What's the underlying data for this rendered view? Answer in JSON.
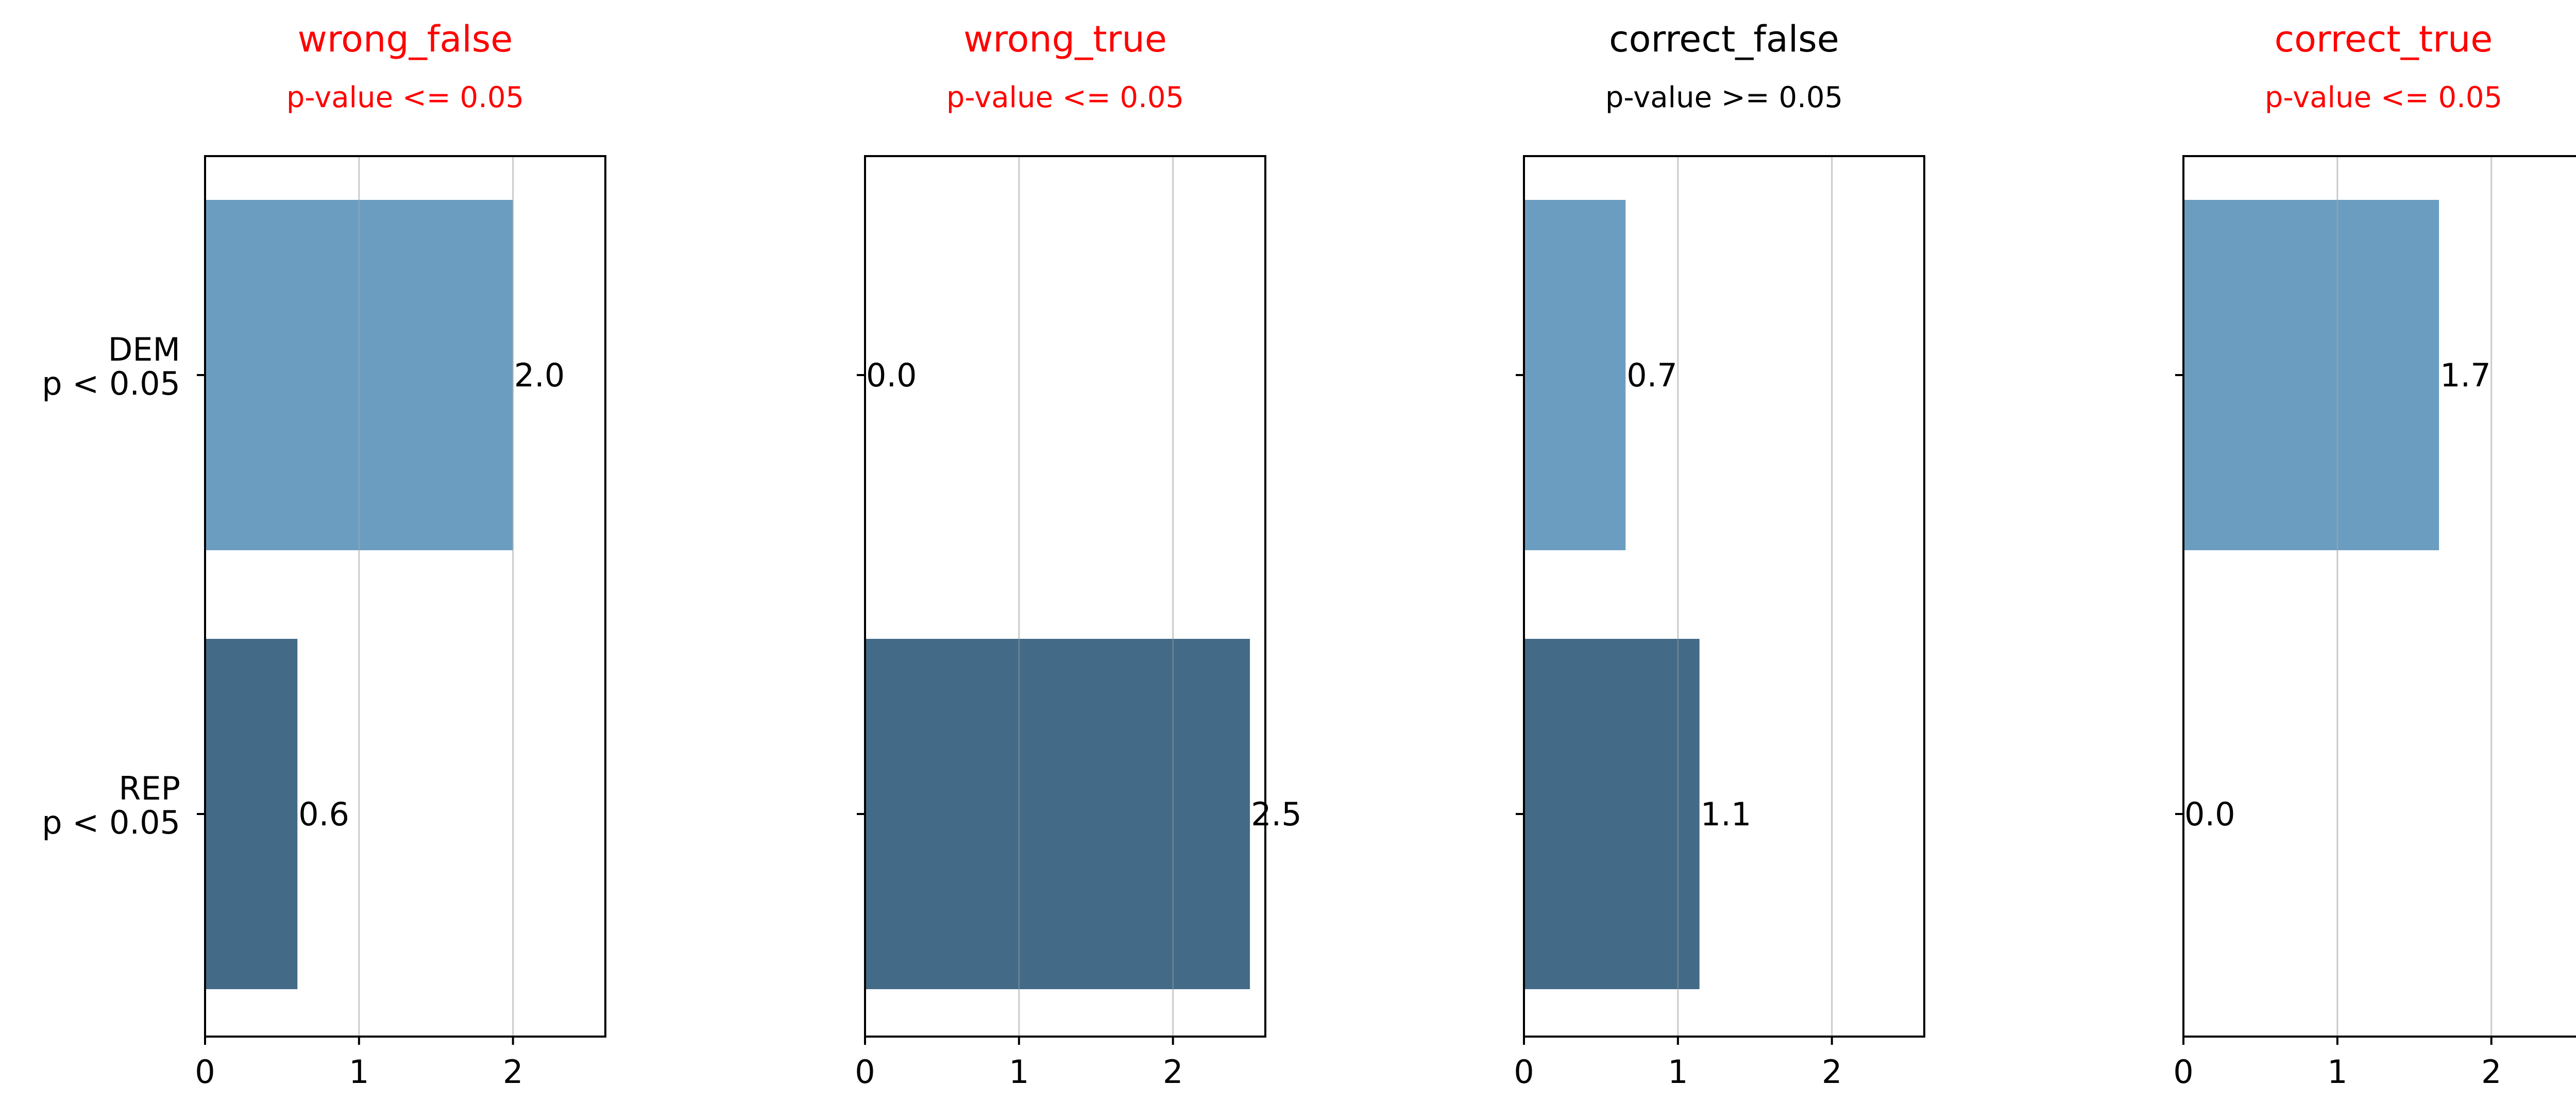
{
  "chart_data": [
    {
      "type": "bar",
      "orientation": "horizontal",
      "title": "wrong_false",
      "subtitle": "p-value <= 0.05",
      "title_color": "#ff0000",
      "categories": [
        "DEM\np < 0.05",
        "REP\np < 0.05"
      ],
      "values": [
        2.0,
        0.6
      ],
      "value_labels": [
        "2.0",
        "0.6"
      ],
      "bar_colors": [
        "#6b9dc0",
        "#436a86"
      ],
      "xlim": [
        0,
        2.6
      ],
      "xticks": [
        "0",
        "1",
        "2"
      ],
      "grid": "x"
    },
    {
      "type": "bar",
      "orientation": "horizontal",
      "title": "wrong_true",
      "subtitle": "p-value <= 0.05",
      "title_color": "#ff0000",
      "categories": [
        "DEM\np < 0.05",
        "REP\np < 0.05"
      ],
      "values": [
        0.0,
        2.5
      ],
      "value_labels": [
        "0.0",
        "2.5"
      ],
      "bar_colors": [
        "#6b9dc0",
        "#436a86"
      ],
      "xlim": [
        0,
        2.6
      ],
      "xticks": [
        "0",
        "1",
        "2"
      ],
      "grid": "x"
    },
    {
      "type": "bar",
      "orientation": "horizontal",
      "title": "correct_false",
      "subtitle": "p-value >= 0.05",
      "title_color": "#000000",
      "categories": [
        "DEM\np < 0.05",
        "REP\np < 0.05"
      ],
      "values": [
        0.66,
        1.14
      ],
      "value_labels": [
        "0.7",
        "1.1"
      ],
      "bar_colors": [
        "#6b9dc0",
        "#436a86"
      ],
      "xlim": [
        0,
        2.6
      ],
      "xticks": [
        "0",
        "1",
        "2"
      ],
      "grid": "x"
    },
    {
      "type": "bar",
      "orientation": "horizontal",
      "title": "correct_true",
      "subtitle": "p-value <= 0.05",
      "title_color": "#ff0000",
      "categories": [
        "DEM\np < 0.05",
        "REP\np < 0.05"
      ],
      "values": [
        1.66,
        0.0
      ],
      "value_labels": [
        "1.7",
        "0.0"
      ],
      "bar_colors": [
        "#6b9dc0",
        "#436a86"
      ],
      "xlim": [
        0,
        2.6
      ],
      "xticks": [
        "0",
        "1",
        "2"
      ],
      "grid": "x"
    }
  ]
}
